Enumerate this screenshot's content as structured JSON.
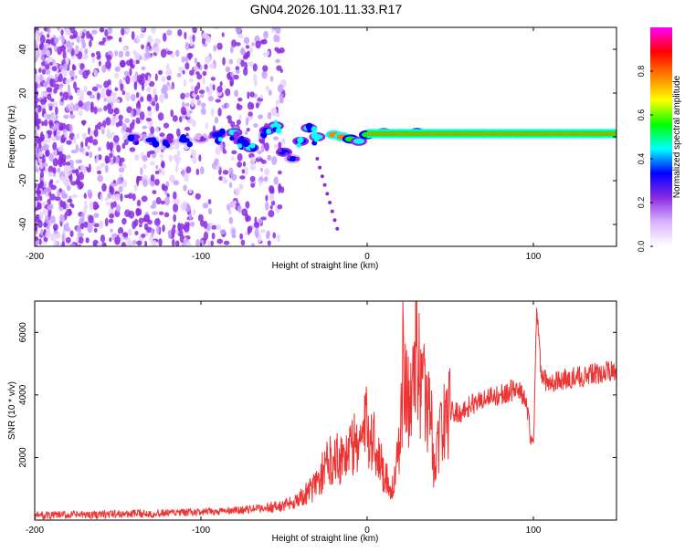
{
  "title": "GN04.2026.101.11.33.R17",
  "chart_data": [
    {
      "type": "heatmap",
      "xlabel": "Height of straight line (km)",
      "ylabel": "Frequency (Hz)",
      "xlim": [
        -200,
        150
      ],
      "ylim": [
        -50,
        50
      ],
      "xticks": [
        -200,
        -100,
        0,
        100
      ],
      "yticks": [
        -40,
        -20,
        0,
        20,
        40
      ],
      "colorbar": {
        "label": "Normalized spectral amplitude",
        "range": [
          0,
          1
        ],
        "ticks": [
          "0.0",
          "0.2",
          "0.4",
          "0.6",
          "0.8"
        ],
        "tick_values": [
          0.0,
          0.2,
          0.4,
          0.6,
          0.8
        ],
        "gradient": [
          "#ffffff",
          "#d9b3ff",
          "#8a2be2",
          "#0000ff",
          "#00ffff",
          "#00ff00",
          "#ffff00",
          "#ff8000",
          "#ff0000",
          "#ff00ff"
        ]
      },
      "ridge": [
        {
          "x": -140,
          "f": 0.0,
          "amp": 0.3
        },
        {
          "x": -130,
          "f": -1.5,
          "amp": 0.35
        },
        {
          "x": -120,
          "f": -2.0,
          "amp": 0.3
        },
        {
          "x": -110,
          "f": -1.5,
          "amp": 0.35
        },
        {
          "x": -100,
          "f": -1.0,
          "amp": 0.25
        },
        {
          "x": -90,
          "f": 1.0,
          "amp": 0.4
        },
        {
          "x": -80,
          "f": 2.0,
          "amp": 0.45
        },
        {
          "x": -75,
          "f": -2.0,
          "amp": 0.4
        },
        {
          "x": -70,
          "f": -5.0,
          "amp": 0.45
        },
        {
          "x": -60,
          "f": 3.0,
          "amp": 0.4
        },
        {
          "x": -55,
          "f": 5.0,
          "amp": 0.45
        },
        {
          "x": -50,
          "f": -7.0,
          "amp": 0.4
        },
        {
          "x": -45,
          "f": -10.0,
          "amp": 0.35
        },
        {
          "x": -40,
          "f": -2.0,
          "amp": 0.4
        },
        {
          "x": -35,
          "f": 4.0,
          "amp": 0.45
        },
        {
          "x": -30,
          "f": 0.0,
          "amp": 0.5
        },
        {
          "x": -20,
          "f": 1.0,
          "amp": 0.8
        },
        {
          "x": -15,
          "f": 0.0,
          "amp": 0.85
        },
        {
          "x": -10,
          "f": -1.0,
          "amp": 0.6
        },
        {
          "x": -5,
          "f": -2.0,
          "amp": 0.55
        },
        {
          "x": 0,
          "f": 1.0,
          "amp": 0.6
        },
        {
          "x": 10,
          "f": 2.0,
          "amp": 0.55
        },
        {
          "x": 20,
          "f": 1.5,
          "amp": 0.6
        },
        {
          "x": 30,
          "f": 2.0,
          "amp": 0.65
        },
        {
          "x": 40,
          "f": 1.5,
          "amp": 0.65
        },
        {
          "x": 50,
          "f": 1.5,
          "amp": 0.7
        },
        {
          "x": 60,
          "f": 1.5,
          "amp": 0.65
        },
        {
          "x": 70,
          "f": 1.5,
          "amp": 0.7
        },
        {
          "x": 80,
          "f": 1.5,
          "amp": 0.65
        },
        {
          "x": 90,
          "f": 1.5,
          "amp": 0.7
        },
        {
          "x": 100,
          "f": 1.5,
          "amp": 0.75
        },
        {
          "x": 110,
          "f": 1.5,
          "amp": 0.7
        },
        {
          "x": 120,
          "f": 1.5,
          "amp": 0.7
        },
        {
          "x": 130,
          "f": 1.5,
          "amp": 0.7
        },
        {
          "x": 140,
          "f": 1.5,
          "amp": 0.7
        },
        {
          "x": 150,
          "f": 1.5,
          "amp": 0.7
        }
      ]
    },
    {
      "type": "line",
      "xlabel": "Height of straight line (km)",
      "ylabel": "SNR (10 * v/v)",
      "xlim": [
        -200,
        150
      ],
      "ylim": [
        0,
        7000
      ],
      "xticks": [
        -200,
        -100,
        0,
        100
      ],
      "yticks": [
        2000,
        4000,
        6000
      ],
      "series": [
        {
          "name": "SNR",
          "color": "#ee3333",
          "x": [
            -200,
            -180,
            -160,
            -140,
            -120,
            -100,
            -80,
            -70,
            -60,
            -50,
            -45,
            -40,
            -35,
            -30,
            -25,
            -20,
            -15,
            -10,
            -5,
            0,
            5,
            10,
            15,
            20,
            22,
            25,
            28,
            30,
            33,
            35,
            38,
            40,
            45,
            50,
            55,
            60,
            70,
            80,
            90,
            95,
            100,
            102,
            105,
            110,
            120,
            130,
            140,
            150
          ],
          "y": [
            150,
            160,
            180,
            200,
            220,
            250,
            300,
            350,
            400,
            450,
            600,
            700,
            900,
            1200,
            1700,
            2100,
            2000,
            2300,
            2500,
            3000,
            2400,
            1500,
            1000,
            2300,
            5700,
            3500,
            4800,
            6200,
            3800,
            4000,
            3600,
            1800,
            3000,
            3500,
            3400,
            3600,
            3900,
            4000,
            4200,
            3900,
            2200,
            6800,
            4500,
            4400,
            4500,
            4600,
            4700,
            4800
          ]
        }
      ]
    }
  ]
}
